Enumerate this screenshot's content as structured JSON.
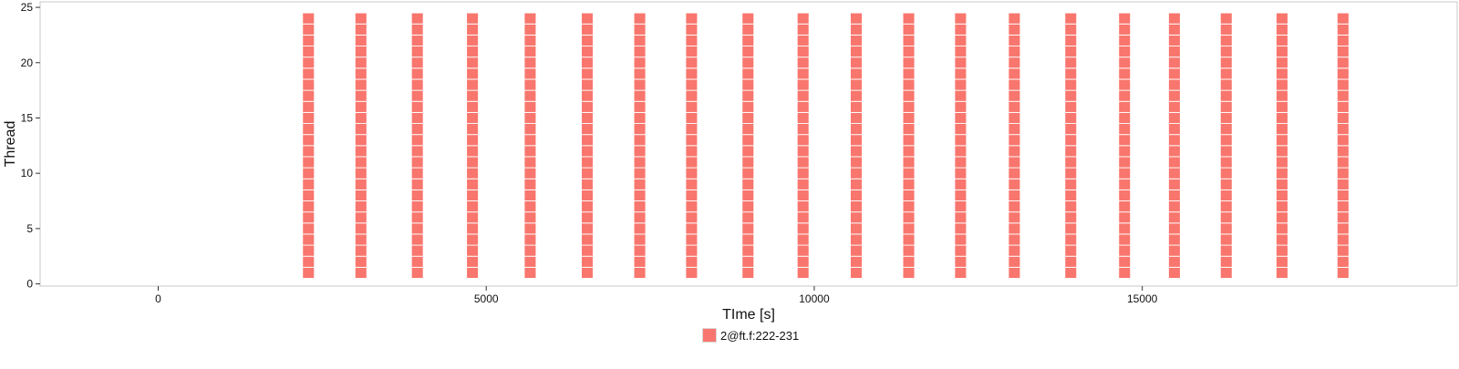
{
  "chart_data": {
    "type": "timeline",
    "title": "",
    "xlabel": "TIme [s]",
    "ylabel": "Thread",
    "xlim": [
      -1800,
      19800
    ],
    "ylim": [
      -0.2,
      25.5
    ],
    "x_ticks": [
      0,
      5000,
      10000,
      15000
    ],
    "x_tick_labels": [
      "0",
      "5000",
      "10000",
      "15000"
    ],
    "y_ticks": [
      0,
      5,
      10,
      15,
      20,
      25
    ],
    "y_tick_labels": [
      "0",
      "5",
      "10",
      "15",
      "20",
      "25"
    ],
    "grid": false,
    "threads": [
      1,
      2,
      3,
      4,
      5,
      6,
      7,
      8,
      9,
      10,
      11,
      12,
      13,
      14,
      15,
      16,
      17,
      18,
      19,
      20,
      21,
      22,
      23,
      24
    ],
    "series": [
      {
        "name": "2@ft.f:222-231",
        "color": "#F8766D",
        "bursts": [
          {
            "start": 2200,
            "end": 2380
          },
          {
            "start": 3000,
            "end": 3180
          },
          {
            "start": 3860,
            "end": 4040
          },
          {
            "start": 4700,
            "end": 4880
          },
          {
            "start": 5580,
            "end": 5760
          },
          {
            "start": 6450,
            "end": 6630
          },
          {
            "start": 7250,
            "end": 7430
          },
          {
            "start": 8040,
            "end": 8220
          },
          {
            "start": 8900,
            "end": 9080
          },
          {
            "start": 9740,
            "end": 9920
          },
          {
            "start": 10550,
            "end": 10730
          },
          {
            "start": 11350,
            "end": 11530
          },
          {
            "start": 12140,
            "end": 12320
          },
          {
            "start": 12960,
            "end": 13140
          },
          {
            "start": 13820,
            "end": 14000
          },
          {
            "start": 14640,
            "end": 14820
          },
          {
            "start": 15400,
            "end": 15580
          },
          {
            "start": 16190,
            "end": 16370
          },
          {
            "start": 17040,
            "end": 17220
          },
          {
            "start": 17970,
            "end": 18150
          }
        ]
      }
    ],
    "legend": {
      "position": "bottom",
      "entries": [
        {
          "label": "2@ft.f:222-231",
          "color": "#F8766D"
        }
      ]
    }
  }
}
